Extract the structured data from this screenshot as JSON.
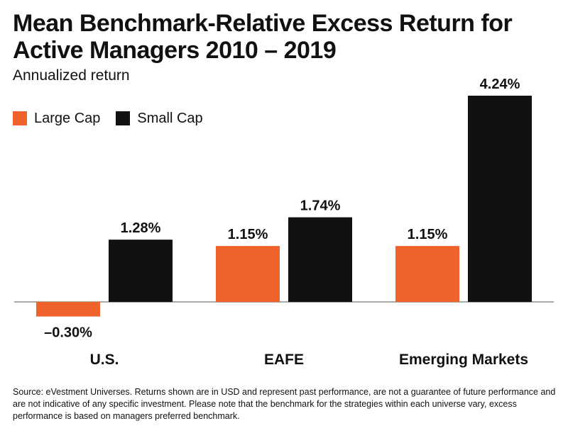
{
  "title": "Mean Benchmark-Relative Excess Return for Active Managers 2010 – 2019",
  "subtitle": "Annualized return",
  "colors": {
    "large_cap": "#f0622c",
    "small_cap": "#111111",
    "axis": "#555555"
  },
  "chart_data": {
    "type": "bar",
    "categories": [
      "U.S.",
      "EAFE",
      "Emerging Markets"
    ],
    "series": [
      {
        "name": "Large Cap",
        "values": [
          -0.3,
          1.15,
          1.15
        ],
        "labels": [
          "–0.30%",
          "1.15%",
          "1.15%"
        ]
      },
      {
        "name": "Small Cap",
        "values": [
          1.28,
          1.74,
          4.24
        ],
        "labels": [
          "1.28%",
          "1.74%",
          "4.24%"
        ]
      }
    ],
    "ylim": [
      -0.5,
      4.5
    ],
    "grid": false,
    "legend": "top-left",
    "xlabel": "",
    "ylabel": ""
  },
  "source_note": "Source: eVestment Universes. Returns shown are in USD and represent past performance, are not a guarantee of future performance and are not indicative of any specific investment. Please note that the benchmark for the strategies within each universe vary, excess performance is based on managers preferred benchmark."
}
